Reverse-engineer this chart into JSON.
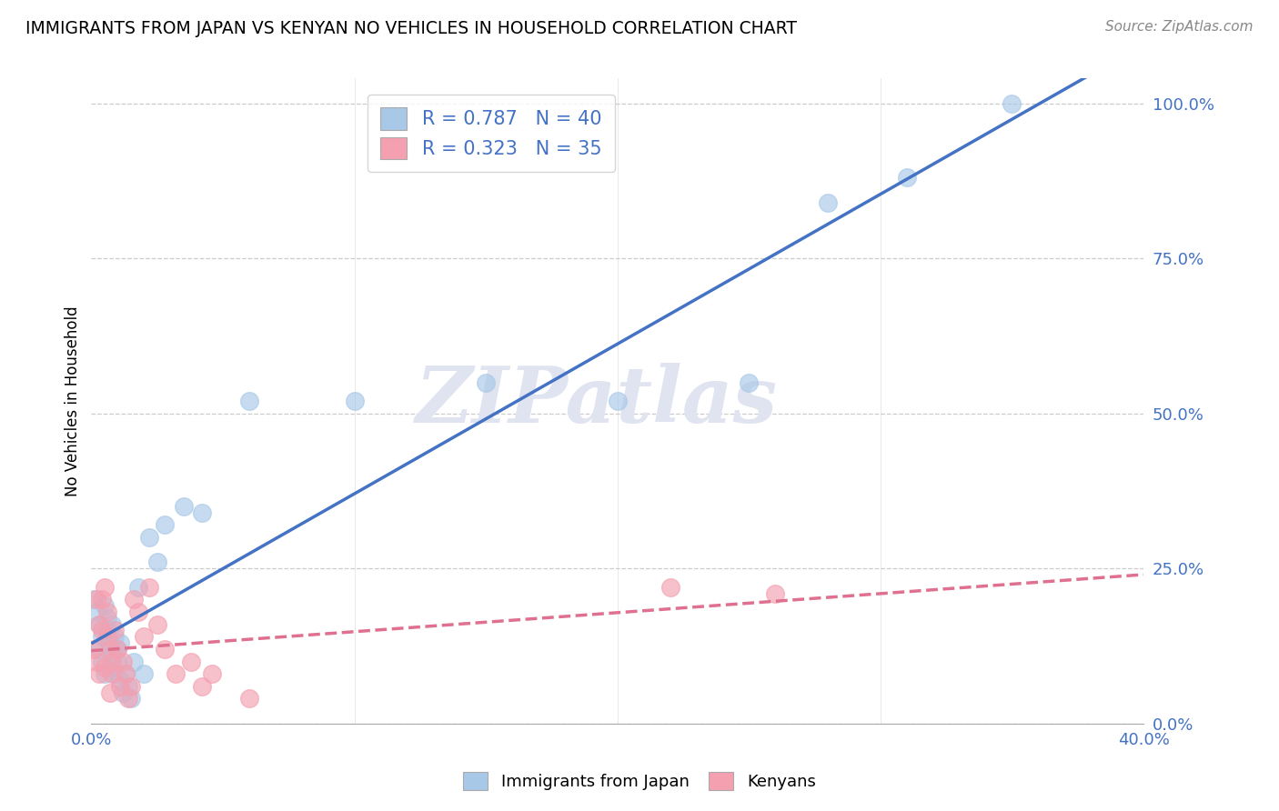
{
  "title": "IMMIGRANTS FROM JAPAN VS KENYAN NO VEHICLES IN HOUSEHOLD CORRELATION CHART",
  "source": "Source: ZipAtlas.com",
  "ylabel": "No Vehicles in Household",
  "ytick_labels": [
    "0.0%",
    "25.0%",
    "50.0%",
    "75.0%",
    "100.0%"
  ],
  "ytick_vals": [
    0.0,
    0.25,
    0.5,
    0.75,
    1.0
  ],
  "xlim": [
    0.0,
    0.4
  ],
  "ylim": [
    0.0,
    1.04
  ],
  "blue_color": "#A8C8E8",
  "pink_color": "#F4A0B0",
  "blue_line_color": "#4472C4",
  "pink_line_color": "#E07090",
  "watermark_text": "ZIPatlas",
  "watermark_color": "#E0E4F0",
  "bg_color": "#FFFFFF",
  "grid_color": "#CCCCCC",
  "tick_label_color": "#4472C4",
  "japan_x": [
    0.001,
    0.002,
    0.003,
    0.003,
    0.004,
    0.004,
    0.005,
    0.005,
    0.006,
    0.006,
    0.007,
    0.007,
    0.008,
    0.008,
    0.009,
    0.009,
    0.01,
    0.01,
    0.011,
    0.011,
    0.012,
    0.013,
    0.014,
    0.015,
    0.016,
    0.018,
    0.02,
    0.022,
    0.025,
    0.028,
    0.035,
    0.042,
    0.06,
    0.1,
    0.15,
    0.2,
    0.25,
    0.28,
    0.31,
    0.35
  ],
  "japan_y": [
    0.2,
    0.18,
    0.16,
    0.12,
    0.14,
    0.1,
    0.19,
    0.08,
    0.15,
    0.17,
    0.13,
    0.09,
    0.16,
    0.11,
    0.14,
    0.08,
    0.12,
    0.1,
    0.07,
    0.13,
    0.05,
    0.08,
    0.06,
    0.04,
    0.1,
    0.22,
    0.08,
    0.3,
    0.26,
    0.32,
    0.35,
    0.34,
    0.52,
    0.52,
    0.55,
    0.52,
    0.55,
    0.84,
    0.88,
    1.0
  ],
  "kenya_x": [
    0.001,
    0.002,
    0.002,
    0.003,
    0.003,
    0.004,
    0.004,
    0.005,
    0.005,
    0.006,
    0.006,
    0.007,
    0.007,
    0.008,
    0.008,
    0.009,
    0.01,
    0.011,
    0.012,
    0.013,
    0.014,
    0.015,
    0.016,
    0.018,
    0.02,
    0.022,
    0.025,
    0.028,
    0.032,
    0.038,
    0.042,
    0.046,
    0.06,
    0.22,
    0.26
  ],
  "kenya_y": [
    0.12,
    0.1,
    0.2,
    0.08,
    0.16,
    0.15,
    0.2,
    0.09,
    0.22,
    0.18,
    0.14,
    0.12,
    0.05,
    0.1,
    0.08,
    0.15,
    0.12,
    0.06,
    0.1,
    0.08,
    0.04,
    0.06,
    0.2,
    0.18,
    0.14,
    0.22,
    0.16,
    0.12,
    0.08,
    0.1,
    0.06,
    0.08,
    0.04,
    0.22,
    0.21
  ],
  "legend_label1": "R = 0.787   N = 40",
  "legend_label2": "R = 0.323   N = 35",
  "bottom_legend1": "Immigrants from Japan",
  "bottom_legend2": "Kenyans"
}
